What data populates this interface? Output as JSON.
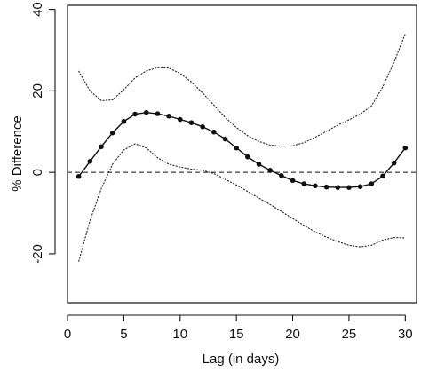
{
  "chart_data": {
    "type": "line",
    "title": "",
    "xlabel": "Lag (in days)",
    "ylabel": "% Difference",
    "xlim": [
      0,
      31
    ],
    "ylim": [
      -32,
      41
    ],
    "xticks": [
      0,
      5,
      10,
      15,
      20,
      25,
      30
    ],
    "yticks": [
      -20,
      0,
      20,
      40
    ],
    "x_tick_labels": [
      "0",
      "5",
      "10",
      "15",
      "20",
      "25",
      "30"
    ],
    "y_tick_labels": [
      "-20",
      "0",
      "20",
      "40"
    ],
    "reference_line": {
      "y": 0,
      "style": "dashed"
    },
    "grid": false,
    "legend": "none",
    "series": [
      {
        "style": "solid-with-markers",
        "x": [
          1,
          2,
          3,
          4,
          5,
          6,
          7,
          8,
          9,
          10,
          11,
          12,
          13,
          14,
          15,
          16,
          17,
          18,
          19,
          20,
          21,
          22,
          23,
          24,
          25,
          26,
          27,
          28,
          29,
          30
        ],
        "y": [
          -1,
          2.7,
          6.3,
          9.7,
          12.5,
          14.3,
          14.7,
          14.4,
          13.8,
          13.0,
          12.2,
          11.2,
          9.9,
          8.2,
          6.0,
          3.8,
          2.0,
          0.5,
          -0.8,
          -2.0,
          -2.8,
          -3.3,
          -3.6,
          -3.7,
          -3.7,
          -3.5,
          -2.8,
          -0.9,
          2.3,
          6.0
        ]
      },
      {
        "style": "dotted",
        "x": [
          1,
          2,
          3,
          4,
          5,
          6,
          7,
          8,
          9,
          10,
          11,
          12,
          13,
          14,
          15,
          16,
          17,
          18,
          19,
          20,
          21,
          22,
          23,
          24,
          25,
          26,
          27,
          28,
          29,
          30
        ],
        "y": [
          24.8,
          20.0,
          17.6,
          17.8,
          20.3,
          23.2,
          24.9,
          25.7,
          25.6,
          24.3,
          22.2,
          19.5,
          16.5,
          13.5,
          11.0,
          9.0,
          7.6,
          6.7,
          6.4,
          6.5,
          7.3,
          8.6,
          10.1,
          11.6,
          12.9,
          14.3,
          16.3,
          21.0,
          27.0,
          34.0
        ]
      },
      {
        "style": "dotted",
        "x": [
          1,
          2,
          3,
          4,
          5,
          6,
          7,
          8,
          9,
          10,
          11,
          12,
          13,
          14,
          15,
          16,
          17,
          18,
          19,
          20,
          21,
          22,
          23,
          24,
          25,
          26,
          27,
          28,
          29,
          30
        ],
        "y": [
          -21.8,
          -11.8,
          -4.0,
          2.0,
          5.5,
          7.0,
          6.0,
          3.6,
          2.0,
          1.3,
          0.8,
          0.5,
          -0.3,
          -1.7,
          -3.1,
          -4.7,
          -6.3,
          -7.9,
          -9.6,
          -11.3,
          -13.0,
          -14.6,
          -15.9,
          -17.0,
          -17.9,
          -18.3,
          -17.9,
          -16.6,
          -16.0,
          -16.1
        ]
      }
    ]
  }
}
